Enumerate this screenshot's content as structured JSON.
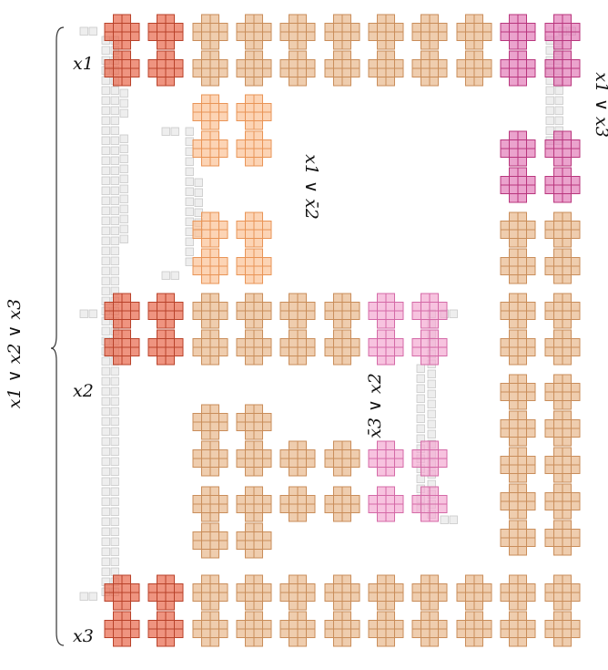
{
  "labels": {
    "x1": "x1",
    "x2": "x2",
    "x3": "x3",
    "clause_main": "x1 ∨ x2 ∨ x3",
    "clause_x1_notx2": "x1 ∨ x̄2",
    "clause_notx3_x2": "x̄3 ∨ x2",
    "clause_x1_x3": "x1 ∨ x3"
  },
  "colors": {
    "variable": "#e8674a",
    "wire": "#e8b88c",
    "clause_orange": "#fbc295",
    "clause_pink": "#f3a9d1",
    "clause_magenta": "#e27cb8",
    "connector": "#e2e2e2"
  }
}
